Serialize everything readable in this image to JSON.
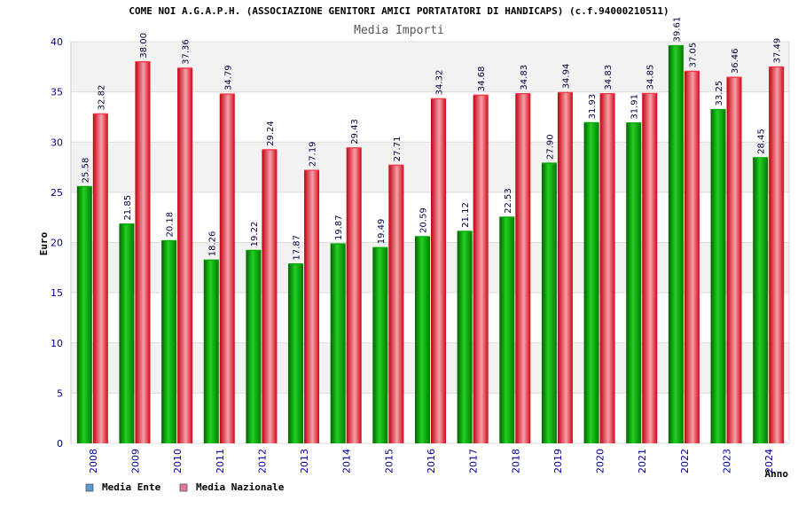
{
  "chart_data": {
    "type": "bar",
    "title": "COME NOI A.G.A.P.H. (ASSOCIAZIONE GENITORI AMICI PORTATATORI DI HANDICAPS) (c.f.94000210511)",
    "subtitle": "Media Importi",
    "xlabel": "Anno",
    "ylabel": "Euro",
    "ylim": [
      0,
      40
    ],
    "yticks": [
      0,
      5,
      10,
      15,
      20,
      25,
      30,
      35,
      40
    ],
    "grid": true,
    "legend_position": "bottom-left",
    "categories": [
      "2008",
      "2009",
      "2010",
      "2011",
      "2012",
      "2013",
      "2014",
      "2015",
      "2016",
      "2017",
      "2018",
      "2019",
      "2020",
      "2021",
      "2022",
      "2023",
      "2024"
    ],
    "series": [
      {
        "name": "Media Ente",
        "legend_color": "#5b9bd5",
        "bar_color": "#00a000",
        "values": [
          25.58,
          21.85,
          20.18,
          18.26,
          19.22,
          17.87,
          19.87,
          19.49,
          20.59,
          21.12,
          22.53,
          27.9,
          31.93,
          31.91,
          39.61,
          33.25,
          28.45
        ],
        "labels": [
          "25.58",
          "21.85",
          "20.18",
          "18.26",
          "19.22",
          "17.87",
          "19.87",
          "19.49",
          "20.59",
          "21.12",
          "22.53",
          "27.90",
          "31.93",
          "31.91",
          "39.61",
          "33.25",
          "28.45"
        ]
      },
      {
        "name": "Media Nazionale",
        "legend_color": "#e07aa0",
        "bar_color": "#e8101e",
        "values": [
          32.82,
          38.0,
          37.36,
          34.79,
          29.24,
          27.19,
          29.43,
          27.71,
          34.32,
          34.68,
          34.83,
          34.94,
          34.83,
          34.85,
          37.05,
          36.46,
          37.49
        ],
        "labels": [
          "32.82",
          "38.00",
          "37.36",
          "34.79",
          "29.24",
          "27.19",
          "29.43",
          "27.71",
          "34.32",
          "34.68",
          "34.83",
          "34.94",
          "34.83",
          "34.85",
          "37.05",
          "36.46",
          "37.49"
        ]
      }
    ]
  }
}
